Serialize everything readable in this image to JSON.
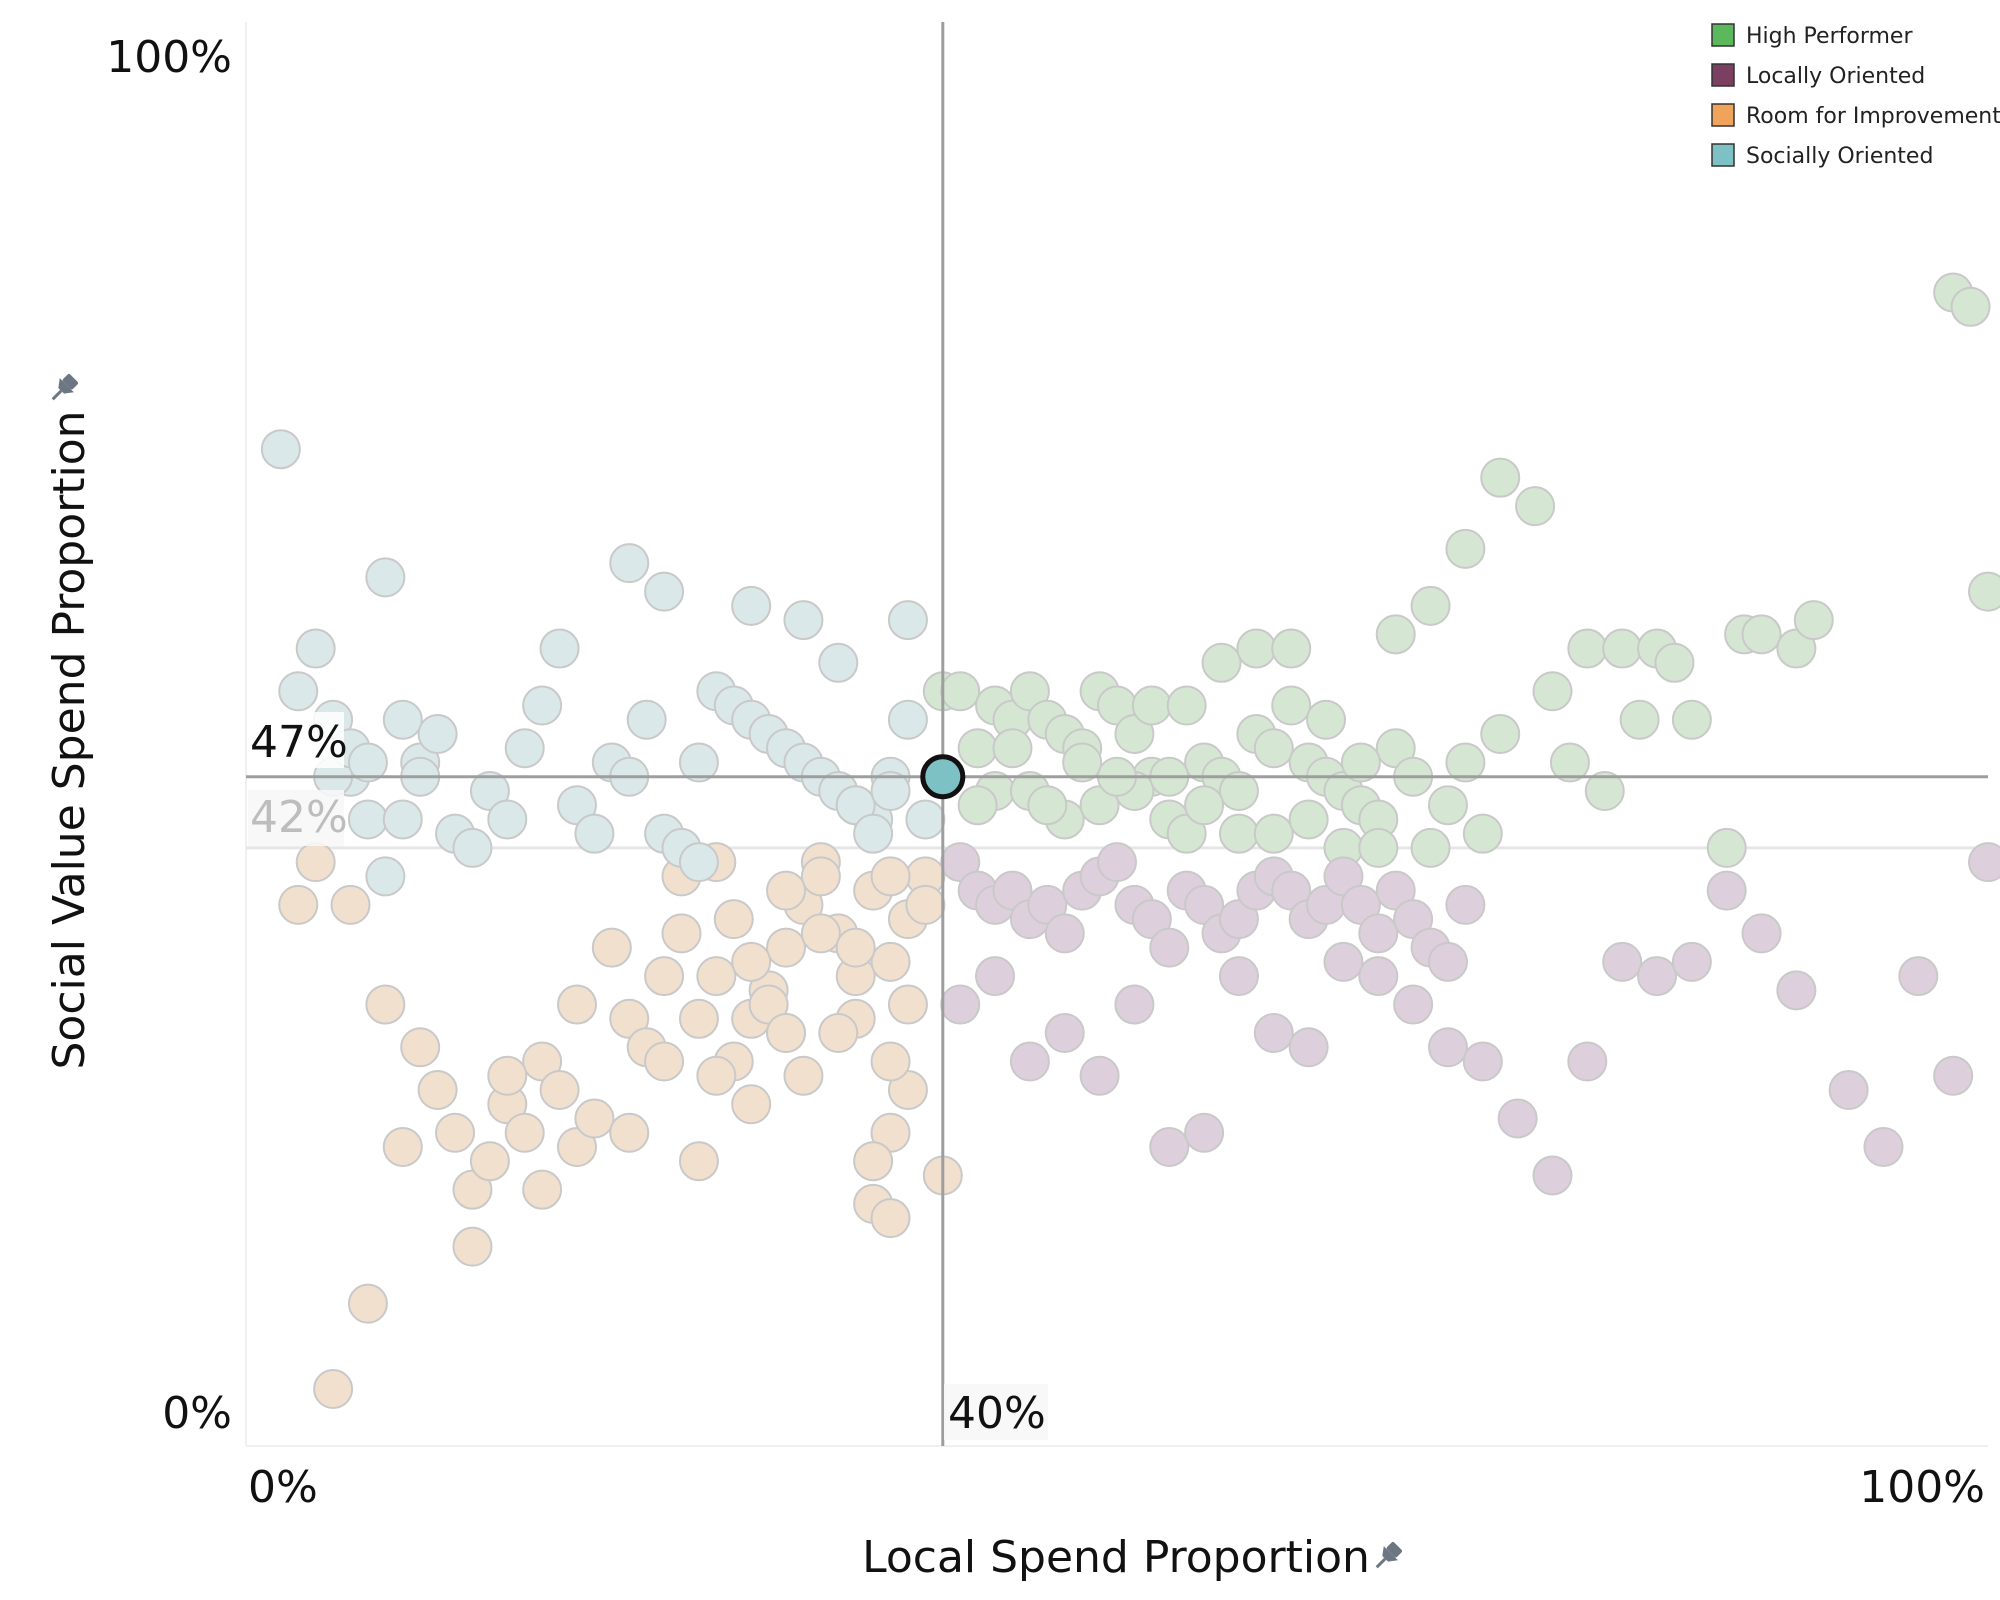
{
  "chart_data": {
    "type": "scatter",
    "xlabel": "Local Spend Proportion",
    "ylabel": "Social Value Spend Proportion",
    "xlim": [
      0,
      100
    ],
    "ylim": [
      0,
      100
    ],
    "x_tick_labels": {
      "min": "0%",
      "max": "100%"
    },
    "y_tick_labels": {
      "min": "0%",
      "max": "100%"
    },
    "reference_lines": {
      "x": {
        "value": 40,
        "label": "40%"
      },
      "y": {
        "value": 47,
        "label": "47%"
      },
      "y_secondary": {
        "value": 42,
        "label": "42%"
      }
    },
    "highlight_point": {
      "x": 40,
      "y": 47,
      "category": "Socially Oriented"
    },
    "legend": {
      "position": "top-right",
      "entries": [
        {
          "label": "High Performer",
          "color": "#5cb85c"
        },
        {
          "label": "Locally Oriented",
          "color": "#7b3f61"
        },
        {
          "label": "Room for Improvement",
          "color": "#f0a35a"
        },
        {
          "label": "Socially Oriented",
          "color": "#7ec1c5"
        }
      ]
    },
    "series": [
      {
        "name": "High Performer",
        "color": "#d5e7d3",
        "points": [
          [
            40,
            53
          ],
          [
            41,
            53
          ],
          [
            42,
            49
          ],
          [
            43,
            52
          ],
          [
            44,
            51
          ],
          [
            45,
            53
          ],
          [
            46,
            51
          ],
          [
            47,
            50
          ],
          [
            48,
            49
          ],
          [
            49,
            53
          ],
          [
            50,
            52
          ],
          [
            51,
            50
          ],
          [
            52,
            47
          ],
          [
            53,
            44
          ],
          [
            54,
            43
          ],
          [
            55,
            48
          ],
          [
            56,
            47
          ],
          [
            57,
            46
          ],
          [
            58,
            50
          ],
          [
            59,
            49
          ],
          [
            60,
            52
          ],
          [
            61,
            48
          ],
          [
            62,
            47
          ],
          [
            63,
            46
          ],
          [
            64,
            45
          ],
          [
            65,
            44
          ],
          [
            66,
            49
          ],
          [
            67,
            47
          ],
          [
            68,
            42
          ],
          [
            69,
            45
          ],
          [
            70,
            48
          ],
          [
            71,
            43
          ],
          [
            72,
            50
          ],
          [
            43,
            46
          ],
          [
            45,
            46
          ],
          [
            47,
            44
          ],
          [
            49,
            45
          ],
          [
            51,
            46
          ],
          [
            53,
            47
          ],
          [
            55,
            45
          ],
          [
            57,
            43
          ],
          [
            59,
            43
          ],
          [
            61,
            44
          ],
          [
            63,
            42
          ],
          [
            65,
            42
          ],
          [
            42,
            45
          ],
          [
            44,
            49
          ],
          [
            46,
            45
          ],
          [
            48,
            48
          ],
          [
            50,
            47
          ],
          [
            52,
            52
          ],
          [
            54,
            52
          ],
          [
            56,
            55
          ],
          [
            58,
            56
          ],
          [
            60,
            56
          ],
          [
            62,
            51
          ],
          [
            64,
            48
          ],
          [
            66,
            57
          ],
          [
            68,
            59
          ],
          [
            70,
            63
          ],
          [
            72,
            68
          ],
          [
            74,
            66
          ],
          [
            75,
            53
          ],
          [
            76,
            48
          ],
          [
            77,
            56
          ],
          [
            78,
            46
          ],
          [
            79,
            56
          ],
          [
            80,
            51
          ],
          [
            81,
            56
          ],
          [
            82,
            55
          ],
          [
            83,
            51
          ],
          [
            85,
            42
          ],
          [
            86,
            57
          ],
          [
            87,
            57
          ],
          [
            89,
            56
          ],
          [
            90,
            58
          ],
          [
            98,
            81
          ],
          [
            99,
            80
          ],
          [
            100,
            60
          ]
        ]
      },
      {
        "name": "Locally Oriented",
        "color": "#ddd0dc",
        "points": [
          [
            41,
            41
          ],
          [
            42,
            39
          ],
          [
            43,
            38
          ],
          [
            44,
            39
          ],
          [
            45,
            37
          ],
          [
            46,
            38
          ],
          [
            47,
            36
          ],
          [
            48,
            39
          ],
          [
            49,
            40
          ],
          [
            50,
            41
          ],
          [
            51,
            38
          ],
          [
            52,
            37
          ],
          [
            53,
            35
          ],
          [
            54,
            39
          ],
          [
            55,
            38
          ],
          [
            56,
            36
          ],
          [
            57,
            37
          ],
          [
            58,
            39
          ],
          [
            59,
            40
          ],
          [
            60,
            39
          ],
          [
            61,
            37
          ],
          [
            62,
            38
          ],
          [
            63,
            40
          ],
          [
            64,
            38
          ],
          [
            65,
            36
          ],
          [
            66,
            39
          ],
          [
            67,
            37
          ],
          [
            68,
            35
          ],
          [
            69,
            34
          ],
          [
            70,
            38
          ],
          [
            41,
            31
          ],
          [
            43,
            33
          ],
          [
            45,
            27
          ],
          [
            47,
            29
          ],
          [
            49,
            26
          ],
          [
            51,
            31
          ],
          [
            53,
            21
          ],
          [
            55,
            22
          ],
          [
            57,
            33
          ],
          [
            59,
            29
          ],
          [
            61,
            28
          ],
          [
            63,
            34
          ],
          [
            65,
            33
          ],
          [
            67,
            31
          ],
          [
            69,
            28
          ],
          [
            71,
            27
          ],
          [
            73,
            23
          ],
          [
            75,
            19
          ],
          [
            77,
            27
          ],
          [
            79,
            34
          ],
          [
            81,
            33
          ],
          [
            83,
            34
          ],
          [
            85,
            39
          ],
          [
            87,
            36
          ],
          [
            89,
            32
          ],
          [
            92,
            25
          ],
          [
            94,
            21
          ],
          [
            96,
            33
          ],
          [
            98,
            26
          ],
          [
            100,
            41
          ]
        ]
      },
      {
        "name": "Room for Improvement",
        "color": "#f2e0cf",
        "points": [
          [
            5,
            4
          ],
          [
            7,
            10
          ],
          [
            3,
            38
          ],
          [
            4,
            41
          ],
          [
            6,
            38
          ],
          [
            8,
            31
          ],
          [
            10,
            28
          ],
          [
            11,
            25
          ],
          [
            12,
            22
          ],
          [
            13,
            18
          ],
          [
            14,
            20
          ],
          [
            15,
            24
          ],
          [
            16,
            22
          ],
          [
            17,
            27
          ],
          [
            18,
            25
          ],
          [
            19,
            21
          ],
          [
            20,
            23
          ],
          [
            22,
            30
          ],
          [
            24,
            33
          ],
          [
            25,
            36
          ],
          [
            26,
            30
          ],
          [
            27,
            33
          ],
          [
            28,
            27
          ],
          [
            29,
            30
          ],
          [
            30,
            32
          ],
          [
            31,
            35
          ],
          [
            32,
            38
          ],
          [
            33,
            41
          ],
          [
            34,
            36
          ],
          [
            35,
            33
          ],
          [
            36,
            39
          ],
          [
            37,
            34
          ],
          [
            38,
            37
          ],
          [
            39,
            40
          ],
          [
            40,
            19
          ],
          [
            9,
            21
          ],
          [
            13,
            14
          ],
          [
            15,
            26
          ],
          [
            17,
            18
          ],
          [
            19,
            31
          ],
          [
            21,
            35
          ],
          [
            23,
            28
          ],
          [
            25,
            40
          ],
          [
            27,
            26
          ],
          [
            29,
            24
          ],
          [
            31,
            29
          ],
          [
            33,
            36
          ],
          [
            35,
            30
          ],
          [
            37,
            22
          ],
          [
            39,
            38
          ],
          [
            22,
            22
          ],
          [
            24,
            27
          ],
          [
            26,
            20
          ],
          [
            28,
            37
          ],
          [
            30,
            31
          ],
          [
            32,
            26
          ],
          [
            34,
            29
          ],
          [
            36,
            17
          ],
          [
            38,
            25
          ],
          [
            38,
            31
          ],
          [
            27,
            41
          ],
          [
            29,
            34
          ],
          [
            31,
            29
          ],
          [
            33,
            40
          ],
          [
            35,
            35
          ],
          [
            37,
            27
          ],
          [
            36,
            20
          ],
          [
            37,
            16
          ],
          [
            31,
            39
          ],
          [
            37,
            40
          ]
        ]
      },
      {
        "name": "Socially Oriented",
        "color": "#dbe8e9",
        "points": [
          [
            2,
            70
          ],
          [
            3,
            53
          ],
          [
            4,
            56
          ],
          [
            5,
            51
          ],
          [
            6,
            47
          ],
          [
            7,
            44
          ],
          [
            8,
            61
          ],
          [
            9,
            51
          ],
          [
            10,
            48
          ],
          [
            11,
            50
          ],
          [
            12,
            43
          ],
          [
            13,
            42
          ],
          [
            14,
            46
          ],
          [
            15,
            44
          ],
          [
            16,
            49
          ],
          [
            17,
            52
          ],
          [
            18,
            56
          ],
          [
            19,
            45
          ],
          [
            20,
            43
          ],
          [
            21,
            48
          ],
          [
            22,
            47
          ],
          [
            23,
            51
          ],
          [
            24,
            43
          ],
          [
            25,
            42
          ],
          [
            26,
            48
          ],
          [
            27,
            53
          ],
          [
            28,
            52
          ],
          [
            29,
            51
          ],
          [
            30,
            50
          ],
          [
            31,
            49
          ],
          [
            32,
            48
          ],
          [
            33,
            47
          ],
          [
            34,
            46
          ],
          [
            35,
            45
          ],
          [
            36,
            44
          ],
          [
            37,
            47
          ],
          [
            38,
            51
          ],
          [
            39,
            44
          ],
          [
            26,
            41
          ],
          [
            22,
            62
          ],
          [
            24,
            60
          ],
          [
            29,
            59
          ],
          [
            32,
            58
          ],
          [
            34,
            55
          ],
          [
            35,
            45
          ],
          [
            36,
            43
          ],
          [
            37,
            46
          ],
          [
            38,
            58
          ],
          [
            5,
            47
          ],
          [
            6,
            49
          ],
          [
            7,
            48
          ],
          [
            8,
            40
          ],
          [
            9,
            44
          ],
          [
            10,
            47
          ]
        ]
      }
    ]
  }
}
